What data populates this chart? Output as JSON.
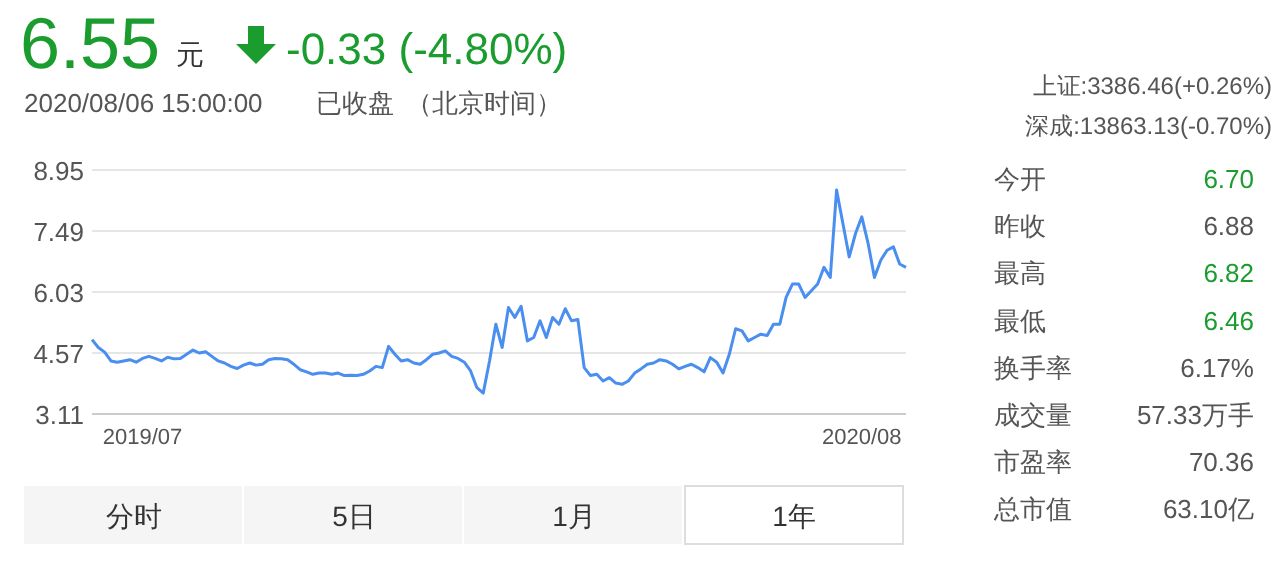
{
  "chart_data": [
    {
      "type": "line",
      "color": "#4a8ef0",
      "grid": "y",
      "ylim": [
        3.11,
        8.95
      ],
      "yticks": [
        3.11,
        4.57,
        6.03,
        7.49,
        8.95
      ],
      "categories": [
        null,
        null,
        null,
        null,
        null,
        null,
        null,
        null,
        "2019/07",
        null,
        null,
        null,
        null,
        null,
        null,
        null,
        null,
        null,
        null,
        null,
        null,
        null,
        null,
        null,
        null,
        null,
        null,
        null,
        null,
        null,
        null,
        null,
        null,
        null,
        null,
        null,
        null,
        null,
        null,
        null,
        null,
        null,
        null,
        null,
        null,
        null,
        null,
        null,
        null,
        null,
        null,
        null,
        null,
        null,
        null,
        null,
        null,
        null,
        null,
        null,
        null,
        null,
        null,
        null,
        null,
        null,
        null,
        null,
        null,
        null,
        null,
        null,
        null,
        null,
        null,
        null,
        null,
        null,
        null,
        null,
        null,
        null,
        null,
        null,
        null,
        null,
        null,
        null,
        null,
        null,
        null,
        null,
        null,
        null,
        null,
        null,
        null,
        null,
        null,
        null,
        null,
        null,
        null,
        null,
        null,
        null,
        null,
        null,
        null,
        null,
        null,
        null,
        null,
        null,
        null,
        null,
        null,
        null,
        null,
        null,
        null,
        null,
        "2020/08",
        null,
        null,
        null,
        null,
        null,
        null,
        null
      ],
      "values": [
        4.89,
        4.7,
        4.59,
        4.38,
        4.35,
        4.38,
        4.41,
        4.35,
        4.44,
        4.49,
        4.44,
        4.38,
        4.47,
        4.43,
        4.44,
        4.54,
        4.64,
        4.57,
        4.6,
        4.49,
        4.38,
        4.33,
        4.25,
        4.2,
        4.28,
        4.33,
        4.28,
        4.3,
        4.41,
        4.44,
        4.43,
        4.41,
        4.3,
        4.17,
        4.12,
        4.06,
        4.09,
        4.09,
        4.06,
        4.09,
        4.03,
        4.04,
        4.03,
        4.06,
        4.14,
        4.25,
        4.22,
        4.73,
        4.54,
        4.38,
        4.41,
        4.33,
        4.3,
        4.41,
        4.54,
        4.57,
        4.62,
        4.49,
        4.44,
        4.35,
        4.14,
        3.74,
        3.61,
        4.38,
        5.26,
        4.7,
        5.66,
        5.42,
        5.69,
        4.86,
        4.94,
        5.34,
        4.94,
        5.42,
        5.26,
        5.63,
        5.34,
        5.37,
        4.22,
        4.03,
        4.06,
        3.9,
        3.98,
        3.85,
        3.82,
        3.9,
        4.09,
        4.19,
        4.3,
        4.33,
        4.41,
        4.38,
        4.3,
        4.19,
        4.25,
        4.3,
        4.22,
        4.12,
        4.46,
        4.35,
        4.09,
        4.54,
        5.15,
        5.1,
        4.86,
        4.94,
        5.02,
        4.99,
        5.26,
        5.26,
        5.9,
        6.22,
        6.22,
        5.9,
        6.06,
        6.22,
        6.62,
        6.38,
        8.47,
        7.67,
        6.87,
        7.43,
        7.83,
        7.19,
        6.38,
        6.79,
        7.03,
        7.11,
        6.7,
        6.62
      ]
    },
    {
      "type": "other",
      "annotations": [
        "6.55",
        "元",
        "-0.33 (-4.80%)",
        "2020/08/06 15:00:00",
        "已收盘",
        "（北京时间）",
        "上证:3386.46(+0.26%)",
        "深成:13863.13(-0.70%)",
        "今开",
        "6.70",
        "昨收",
        "6.88",
        "最高",
        "6.82",
        "最低",
        "6.46",
        "换手率",
        "6.17%",
        "成交量",
        "57.33万手",
        "市盈率",
        "70.36",
        "总市值",
        "63.10亿",
        "分时",
        "5日",
        "1月",
        "1年"
      ]
    }
  ]
}
